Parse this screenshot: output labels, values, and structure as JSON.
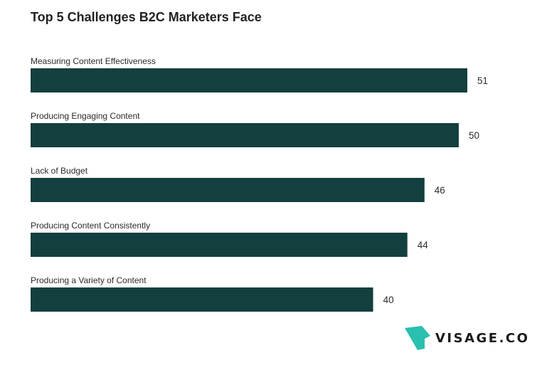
{
  "chart_data": {
    "type": "bar",
    "orientation": "horizontal",
    "title": "Top 5 Challenges B2C Marketers Face",
    "categories": [
      "Measuring Content Effectiveness",
      "Producing Engaging Content",
      "Lack of Budget",
      "Producing Content Consistently",
      "Producing a Variety of Content"
    ],
    "values": [
      51,
      50,
      46,
      44,
      40
    ],
    "xlabel": "",
    "ylabel": "",
    "xlim": [
      0,
      51
    ],
    "grid": false,
    "legend": "none",
    "bar_color": "#133f3e"
  },
  "brand": {
    "name": "VISAGE.CO",
    "logo_color": "#2bbfae",
    "text_color": "#1a1a1a"
  }
}
